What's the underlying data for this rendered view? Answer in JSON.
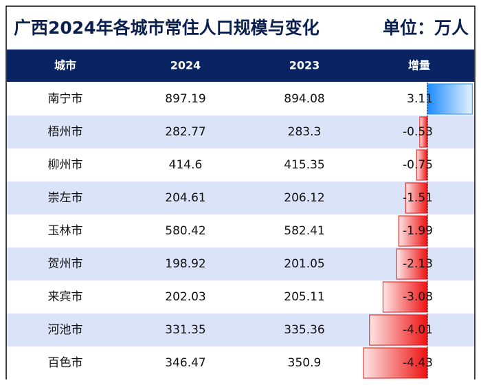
{
  "table": {
    "title": "广西2024年各城市常住人口规模与变化",
    "unit": "单位：万人",
    "headers": [
      "城市",
      "2024",
      "2023",
      "增量"
    ],
    "rows": [
      [
        "南宁市",
        897.19,
        894.08,
        3.11
      ],
      [
        "梧州市",
        282.77,
        283.3,
        -0.53
      ],
      [
        "柳州市",
        414.6,
        415.35,
        -0.75
      ],
      [
        "崇左市",
        204.61,
        206.12,
        -1.51
      ],
      [
        "玉林市",
        580.42,
        582.41,
        -1.99
      ],
      [
        "贺州市",
        198.92,
        201.05,
        -2.13
      ],
      [
        "来宾市",
        202.03,
        205.11,
        -3.08
      ],
      [
        "河池市",
        331.35,
        335.36,
        -4.01
      ],
      [
        "百色市",
        346.47,
        350.9,
        -4.43
      ]
    ]
  }
}
